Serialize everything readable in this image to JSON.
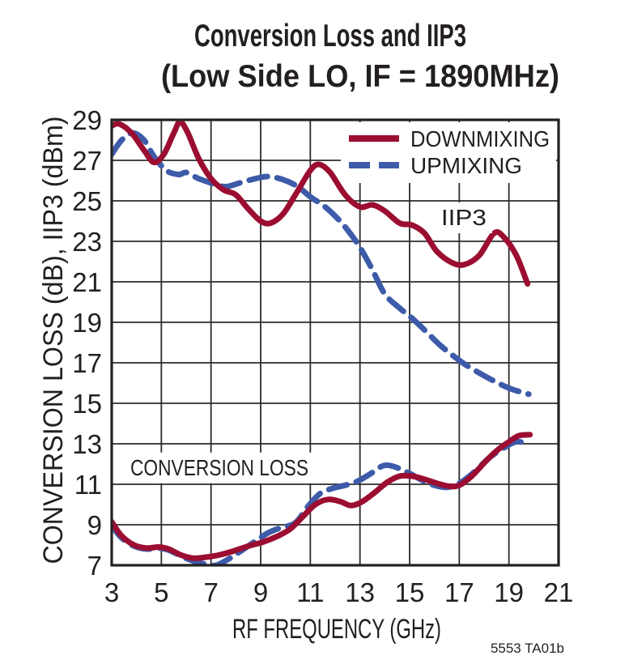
{
  "title": {
    "line1": "Conversion Loss and IIP3",
    "line2": "(Low Side LO, IF = 1890MHz)"
  },
  "footnote": "5553 TA01b",
  "colors": {
    "downmixing": "#9B0E31",
    "upmixing": "#3D5BA9",
    "grid": "#2B2B2B",
    "text": "#231F20"
  },
  "chart_data": {
    "type": "line",
    "title": "Conversion Loss and IIP3 (Low Side LO, IF = 1890MHz)",
    "xlabel": "RF FREQUENCY (GHz)",
    "ylabel": "CONVERSION LOSS (dB), IIP3 (dBm)",
    "xlim": [
      3,
      21
    ],
    "ylim": [
      7,
      29
    ],
    "x_ticks": [
      3,
      5,
      7,
      9,
      11,
      13,
      15,
      17,
      19,
      21
    ],
    "y_ticks": [
      7,
      9,
      11,
      13,
      15,
      17,
      19,
      21,
      23,
      25,
      27,
      29
    ],
    "grid": true,
    "legend": {
      "position": "top-right",
      "entries": [
        {
          "label": "DOWNMIXING",
          "color": "#9B0E31",
          "style": "solid"
        },
        {
          "label": "UPMIXING",
          "color": "#3D5BA9",
          "style": "dashed"
        }
      ]
    },
    "annotations": [
      {
        "text": "IIP3",
        "x": 16.27,
        "y": 24.2
      },
      {
        "text": "CONVERSION LOSS",
        "x": 3.75,
        "y": 11.85
      }
    ],
    "series": [
      {
        "name": "IIP3 DOWNMIXING",
        "color": "#9B0E31",
        "style": "solid",
        "points": [
          [
            3,
            28.7
          ],
          [
            3.3,
            28.8
          ],
          [
            3.8,
            28.35
          ],
          [
            4.3,
            27.5
          ],
          [
            4.7,
            26.9
          ],
          [
            5.1,
            27.3
          ],
          [
            5.5,
            28.35
          ],
          [
            5.75,
            28.9
          ],
          [
            6.05,
            28.4
          ],
          [
            6.5,
            27.1
          ],
          [
            7,
            26.1
          ],
          [
            7.5,
            25.55
          ],
          [
            8,
            25.3
          ],
          [
            8.5,
            24.6
          ],
          [
            9,
            24.0
          ],
          [
            9.4,
            23.9
          ],
          [
            9.9,
            24.35
          ],
          [
            10.4,
            25.3
          ],
          [
            11,
            26.5
          ],
          [
            11.35,
            26.8
          ],
          [
            11.8,
            26.4
          ],
          [
            12.4,
            25.3
          ],
          [
            13,
            24.7
          ],
          [
            13.5,
            24.8
          ],
          [
            14,
            24.5
          ],
          [
            14.6,
            23.9
          ],
          [
            15.1,
            23.8
          ],
          [
            15.6,
            23.4
          ],
          [
            16.1,
            22.5
          ],
          [
            16.7,
            21.95
          ],
          [
            17.2,
            21.85
          ],
          [
            17.8,
            22.3
          ],
          [
            18.4,
            23.4
          ],
          [
            18.8,
            23.2
          ],
          [
            19.3,
            22.3
          ],
          [
            19.75,
            20.9
          ]
        ]
      },
      {
        "name": "IIP3 UPMIXING",
        "color": "#3D5BA9",
        "style": "dashed",
        "points": [
          [
            3,
            27.3
          ],
          [
            3.4,
            28.0
          ],
          [
            3.85,
            28.35
          ],
          [
            4.3,
            28.0
          ],
          [
            4.7,
            27.2
          ],
          [
            5.2,
            26.5
          ],
          [
            5.7,
            26.3
          ],
          [
            6.0,
            26.4
          ],
          [
            6.5,
            26.1
          ],
          [
            7.1,
            25.85
          ],
          [
            7.6,
            25.7
          ],
          [
            8.2,
            25.9
          ],
          [
            8.8,
            26.1
          ],
          [
            9.3,
            26.2
          ],
          [
            9.9,
            26.05
          ],
          [
            10.5,
            25.7
          ],
          [
            11,
            25.2
          ],
          [
            11.6,
            24.7
          ],
          [
            12.2,
            24.0
          ],
          [
            12.6,
            23.4
          ],
          [
            13,
            22.7
          ],
          [
            13.5,
            21.6
          ],
          [
            14,
            20.4
          ],
          [
            14.6,
            19.7
          ],
          [
            15.1,
            19.2
          ],
          [
            15.7,
            18.5
          ],
          [
            16.2,
            17.9
          ],
          [
            16.7,
            17.4
          ],
          [
            17.2,
            16.95
          ],
          [
            17.8,
            16.5
          ],
          [
            18.4,
            16.1
          ],
          [
            19,
            15.75
          ],
          [
            19.5,
            15.55
          ],
          [
            19.8,
            15.45
          ]
        ]
      },
      {
        "name": "CONVERSION LOSS DOWNMIXING",
        "color": "#9B0E31",
        "style": "solid",
        "points": [
          [
            3,
            9.15
          ],
          [
            3.4,
            8.45
          ],
          [
            3.9,
            8.0
          ],
          [
            4.4,
            7.85
          ],
          [
            4.9,
            7.9
          ],
          [
            5.3,
            7.8
          ],
          [
            5.8,
            7.5
          ],
          [
            6.3,
            7.35
          ],
          [
            6.8,
            7.4
          ],
          [
            7.3,
            7.5
          ],
          [
            7.9,
            7.7
          ],
          [
            8.5,
            7.95
          ],
          [
            9.1,
            8.15
          ],
          [
            9.7,
            8.45
          ],
          [
            10.2,
            8.8
          ],
          [
            10.7,
            9.4
          ],
          [
            11.2,
            10.0
          ],
          [
            11.7,
            10.25
          ],
          [
            12.2,
            10.15
          ],
          [
            12.65,
            9.95
          ],
          [
            13.1,
            10.15
          ],
          [
            13.6,
            10.6
          ],
          [
            14.1,
            11.1
          ],
          [
            14.6,
            11.4
          ],
          [
            15.1,
            11.4
          ],
          [
            15.6,
            11.25
          ],
          [
            16.1,
            11.05
          ],
          [
            16.6,
            10.9
          ],
          [
            17,
            10.95
          ],
          [
            17.5,
            11.4
          ],
          [
            18,
            12.05
          ],
          [
            18.5,
            12.65
          ],
          [
            19,
            13.1
          ],
          [
            19.4,
            13.4
          ],
          [
            19.85,
            13.45
          ]
        ]
      },
      {
        "name": "CONVERSION LOSS UPMIXING",
        "color": "#3D5BA9",
        "style": "dashed",
        "points": [
          [
            3,
            8.95
          ],
          [
            3.4,
            8.35
          ],
          [
            3.9,
            7.95
          ],
          [
            4.4,
            7.8
          ],
          [
            4.9,
            7.85
          ],
          [
            5.3,
            7.75
          ],
          [
            5.8,
            7.45
          ],
          [
            6.3,
            7.2
          ],
          [
            6.8,
            7.05
          ],
          [
            7.2,
            7.0
          ],
          [
            7.7,
            7.3
          ],
          [
            8.2,
            7.7
          ],
          [
            8.8,
            8.2
          ],
          [
            9.3,
            8.6
          ],
          [
            9.8,
            8.85
          ],
          [
            10.4,
            9.1
          ],
          [
            10.9,
            9.9
          ],
          [
            11.4,
            10.55
          ],
          [
            11.9,
            10.8
          ],
          [
            12.4,
            10.95
          ],
          [
            12.9,
            11.15
          ],
          [
            13.4,
            11.5
          ],
          [
            13.9,
            11.9
          ],
          [
            14.3,
            11.9
          ],
          [
            14.9,
            11.6
          ],
          [
            15.5,
            11.2
          ],
          [
            16,
            10.95
          ],
          [
            16.5,
            10.85
          ],
          [
            17,
            11.05
          ],
          [
            17.6,
            11.6
          ],
          [
            18.2,
            12.3
          ],
          [
            18.8,
            12.8
          ],
          [
            19.3,
            13.1
          ],
          [
            19.75,
            13.0
          ]
        ]
      }
    ]
  }
}
